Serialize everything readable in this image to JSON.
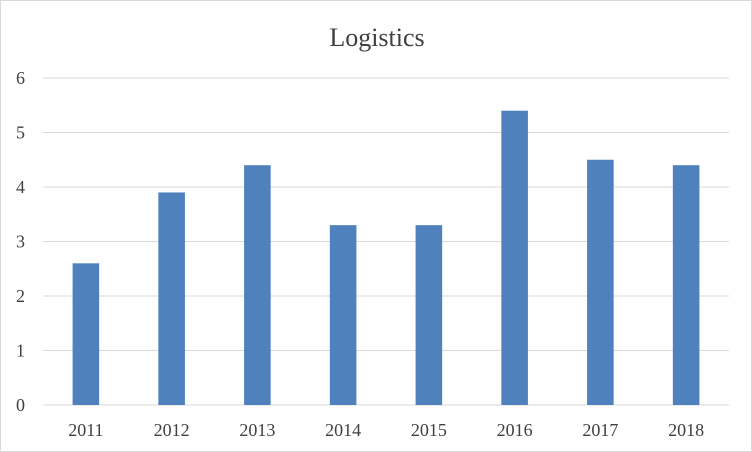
{
  "chart_data": {
    "type": "bar",
    "title": "Logistics",
    "xlabel": "",
    "ylabel": "",
    "categories": [
      "2011",
      "2012",
      "2013",
      "2014",
      "2015",
      "2016",
      "2017",
      "2018"
    ],
    "values": [
      2.6,
      3.9,
      4.4,
      3.3,
      3.3,
      5.4,
      4.5,
      4.4
    ],
    "ylim": [
      0,
      6
    ],
    "yticks": [
      "0",
      "1",
      "2",
      "3",
      "4",
      "5",
      "6"
    ],
    "grid": true,
    "legend": "none",
    "colors": {
      "bar": "#4f81bd",
      "grid": "#d9d9d9",
      "text": "#404040"
    }
  }
}
